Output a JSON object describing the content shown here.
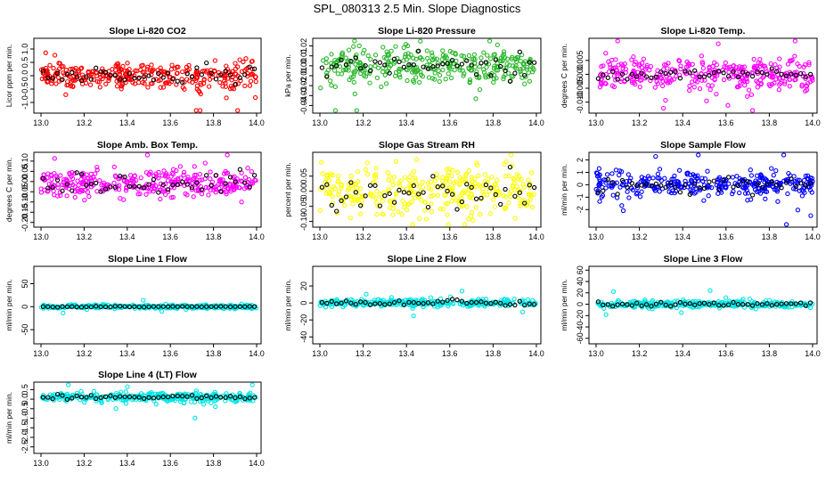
{
  "figure_title": "SPL_080313  2.5 Min. Slope Diagnostics",
  "chart_data": [
    {
      "type": "scatter",
      "title": "Slope Li-820 CO2",
      "xlabel": "",
      "ylabel": "Licor ppm per min.",
      "xlim": [
        13.0,
        14.0
      ],
      "xticks": [
        "13.0",
        "13.2",
        "13.4",
        "13.6",
        "13.8",
        "14.0"
      ],
      "ylim": [
        -1.3,
        1.3
      ],
      "yticks": [
        {
          "v": -1.0,
          "label": "-1.0"
        },
        {
          "v": -0.5,
          "label": "-0.5"
        },
        {
          "v": 0.0,
          "label": "0.0"
        },
        {
          "v": 0.5,
          "label": "0.5"
        },
        {
          "v": 1.0,
          "label": "1.0"
        }
      ],
      "color": "#ff0000",
      "outlier_color": "#000000",
      "center": 0.0,
      "spread": 0.25,
      "outlier_spread": 0.15
    },
    {
      "type": "scatter",
      "title": "Slope Li-820 Pressure",
      "xlabel": "",
      "ylabel": "kPa per min.",
      "xlim": [
        13.0,
        14.0
      ],
      "xticks": [
        "13.0",
        "13.2",
        "13.4",
        "13.6",
        "13.8",
        "14.0"
      ],
      "ylim": [
        -0.045,
        0.025
      ],
      "yticks": [
        {
          "v": -0.04,
          "label": "-0.04"
        },
        {
          "v": -0.03,
          "label": "-0.03"
        },
        {
          "v": -0.02,
          "label": "-0.02"
        },
        {
          "v": -0.01,
          "label": "-0.01"
        },
        {
          "v": 0.0,
          "label": "0.00"
        },
        {
          "v": 0.01,
          "label": "0.01"
        },
        {
          "v": 0.02,
          "label": "0.02"
        }
      ],
      "color": "#2db82d",
      "outlier_color": "#000000",
      "center": 0.0,
      "spread": 0.008,
      "outlier_spread": 0.006
    },
    {
      "type": "scatter",
      "title": "Slope Li-820 Temp.",
      "xlabel": "",
      "ylabel": "degrees C per min.",
      "xlim": [
        13.0,
        14.0
      ],
      "xticks": [
        "13.0",
        "13.2",
        "13.4",
        "13.6",
        "13.8",
        "14.0"
      ],
      "ylim": [
        -0.013,
        0.012
      ],
      "yticks": [
        {
          "v": -0.01,
          "label": "-0.010"
        },
        {
          "v": -0.005,
          "label": "-0.005"
        },
        {
          "v": 0.0,
          "label": "0.000"
        },
        {
          "v": 0.005,
          "label": "0.005"
        }
      ],
      "color": "#ff00ff",
      "outlier_color": "#000000",
      "center": 0.0,
      "spread": 0.003,
      "outlier_spread": 0.001
    },
    {
      "type": "scatter",
      "title": "Slope Amb. Box Temp.",
      "xlabel": "",
      "ylabel": "degrees C per min.",
      "xlim": [
        13.0,
        14.0
      ],
      "xticks": [
        "13.0",
        "13.2",
        "13.4",
        "13.6",
        "13.8",
        "14.0"
      ],
      "ylim": [
        -0.21,
        0.13
      ],
      "yticks": [
        {
          "v": -0.2,
          "label": "-0.20"
        },
        {
          "v": -0.15,
          "label": "-0.15"
        },
        {
          "v": -0.1,
          "label": "-0.10"
        },
        {
          "v": -0.05,
          "label": "-0.05"
        },
        {
          "v": 0.0,
          "label": "0.00"
        },
        {
          "v": 0.05,
          "label": "0.05"
        },
        {
          "v": 0.1,
          "label": "0.10"
        }
      ],
      "color": "#ff00ff",
      "outlier_color": "#000000",
      "center": -0.01,
      "spread": 0.035,
      "outlier_spread": 0.025
    },
    {
      "type": "scatter",
      "title": "Slope Gas Stream RH",
      "xlabel": "",
      "ylabel": "percent per min.",
      "xlim": [
        13.0,
        14.0
      ],
      "xticks": [
        "13.0",
        "13.2",
        "13.4",
        "13.6",
        "13.8",
        "14.0"
      ],
      "ylim": [
        -0.11,
        0.12
      ],
      "yticks": [
        {
          "v": -0.1,
          "label": "-0.10"
        },
        {
          "v": -0.05,
          "label": "-0.05"
        },
        {
          "v": 0.0,
          "label": "0.00"
        },
        {
          "v": 0.05,
          "label": "0.05"
        }
      ],
      "color": "#ffff00",
      "outlier_color": "#000000",
      "center": 0.0,
      "spread": 0.04,
      "outlier_spread": 0.03
    },
    {
      "type": "scatter",
      "title": "Slope Sample Flow",
      "xlabel": "",
      "ylabel": "ml/min per min.",
      "xlim": [
        13.0,
        14.0
      ],
      "xticks": [
        "13.0",
        "13.2",
        "13.4",
        "13.6",
        "13.8",
        "14.0"
      ],
      "ylim": [
        -3.2,
        2.4
      ],
      "yticks": [
        {
          "v": -2,
          "label": "-2"
        },
        {
          "v": -1,
          "label": "-1"
        },
        {
          "v": 0,
          "label": "0"
        },
        {
          "v": 1,
          "label": "1"
        },
        {
          "v": 2,
          "label": "2"
        }
      ],
      "color": "#0000ff",
      "outlier_color": "#000000",
      "center": 0.0,
      "spread": 0.5,
      "outlier_spread": 0.4
    },
    {
      "type": "scatter",
      "title": "Slope Line 1 Flow",
      "xlabel": "",
      "ylabel": "ml/min per min.",
      "xlim": [
        13.0,
        14.0
      ],
      "xticks": [
        "13.0",
        "13.2",
        "13.4",
        "13.6",
        "13.8",
        "14.0"
      ],
      "ylim": [
        -75,
        82
      ],
      "yticks": [
        {
          "v": -50,
          "label": "-50"
        },
        {
          "v": 0,
          "label": "0"
        },
        {
          "v": 50,
          "label": "50"
        }
      ],
      "color": "#00e5e5",
      "outlier_color": "#000000",
      "center": 0.0,
      "spread": 2,
      "outlier_spread": 0.5
    },
    {
      "type": "scatter",
      "title": "Slope Line 2 Flow",
      "xlabel": "",
      "ylabel": "ml/min per min.",
      "xlim": [
        13.0,
        14.0
      ],
      "xticks": [
        "13.0",
        "13.2",
        "13.4",
        "13.6",
        "13.8",
        "14.0"
      ],
      "ylim": [
        -45,
        40
      ],
      "yticks": [
        {
          "v": -40,
          "label": "-40"
        },
        {
          "v": -20,
          "label": "-20"
        },
        {
          "v": 0,
          "label": "0"
        },
        {
          "v": 20,
          "label": "20"
        }
      ],
      "color": "#00e5e5",
      "outlier_color": "#000000",
      "center": 0.0,
      "spread": 2,
      "outlier_spread": 1.5
    },
    {
      "type": "scatter",
      "title": "Slope Line 3 Flow",
      "xlabel": "",
      "ylabel": "ml/min per min.",
      "xlim": [
        13.0,
        14.0
      ],
      "xticks": [
        "13.0",
        "13.2",
        "13.4",
        "13.6",
        "13.8",
        "14.0"
      ],
      "ylim": [
        -65,
        62
      ],
      "yticks": [
        {
          "v": -60,
          "label": "-60"
        },
        {
          "v": -40,
          "label": "-40"
        },
        {
          "v": -20,
          "label": "-20"
        },
        {
          "v": 0,
          "label": "0"
        },
        {
          "v": 20,
          "label": "20"
        },
        {
          "v": 40,
          "label": "40"
        },
        {
          "v": 60,
          "label": "60"
        }
      ],
      "color": "#00e5e5",
      "outlier_color": "#000000",
      "center": 0.0,
      "spread": 3,
      "outlier_spread": 2
    },
    {
      "type": "scatter",
      "title": "Slope Line 4 (LT) Flow",
      "xlabel": "",
      "ylabel": "ml/min per min.",
      "xlim": [
        13.0,
        14.0
      ],
      "xticks": [
        "13.0",
        "13.2",
        "13.4",
        "13.6",
        "13.8",
        "14.0"
      ],
      "ylim": [
        -2.7,
        0.75
      ],
      "yticks": [
        {
          "v": -2.5,
          "label": "-2.5"
        },
        {
          "v": -2.0,
          "label": "-2.0"
        },
        {
          "v": -1.5,
          "label": "-1.5"
        },
        {
          "v": -1.0,
          "label": "-1.0"
        },
        {
          "v": -0.5,
          "label": "-0.5"
        },
        {
          "v": 0.0,
          "label": "0.0"
        },
        {
          "v": 0.5,
          "label": "0.5"
        }
      ],
      "color": "#00e5e5",
      "outlier_color": "#000000",
      "center": 0.1,
      "spread": 0.12,
      "outlier_spread": 0.06
    }
  ]
}
